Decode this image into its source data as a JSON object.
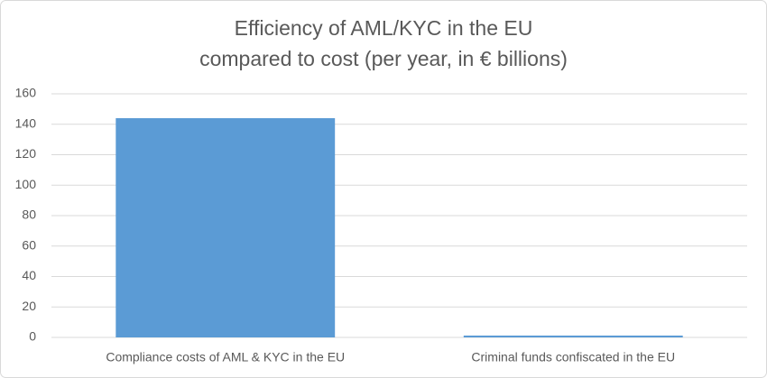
{
  "chart_data": {
    "type": "bar",
    "title": [
      "Efficiency of AML/KYC in the EU",
      "compared to cost (per year, in € billions)"
    ],
    "categories": [
      "Compliance costs of AML & KYC in the EU",
      "Criminal funds confiscated in the EU"
    ],
    "values": [
      144,
      1.2
    ],
    "color": "#5b9bd5",
    "ylim": [
      0,
      160
    ],
    "yticks": [
      0,
      20,
      40,
      60,
      80,
      100,
      120,
      140,
      160
    ],
    "grid": true
  }
}
